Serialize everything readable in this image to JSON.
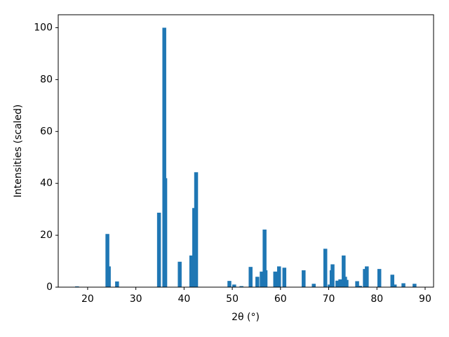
{
  "chart_data": {
    "type": "bar",
    "x_label": "2θ (°)",
    "y_label": "Intensities (scaled)",
    "x": [
      17.8,
      24.1,
      24.4,
      26.1,
      34.8,
      35.9,
      36.1,
      39.1,
      41.5,
      42.1,
      42.5,
      49.4,
      50.4,
      51.9,
      53.8,
      55.2,
      56.1,
      56.7,
      56.9,
      58.9,
      59.7,
      60.8,
      64.8,
      66.9,
      69.3,
      70.2,
      70.6,
      70.8,
      71.8,
      72.4,
      73.1,
      73.4,
      73.7,
      75.9,
      76.5,
      77.5,
      77.9,
      80.5,
      83.2,
      83.7,
      85.5,
      87.8
    ],
    "values": [
      0.3,
      20.5,
      8,
      2.2,
      28.7,
      100,
      42,
      9.8,
      12.2,
      30.5,
      44.3,
      2.4,
      1,
      0.4,
      7.8,
      4,
      6,
      22.2,
      6.5,
      6,
      8,
      7.5,
      6.5,
      1.3,
      14.8,
      1,
      6.5,
      8.8,
      2.5,
      3,
      12.2,
      4,
      2.8,
      2.3,
      0.5,
      7,
      8,
      7,
      4.8,
      1,
      1.5,
      1.3
    ],
    "color": "#1f77b4",
    "xlim": [
      13.9,
      91.75
    ],
    "ylim": [
      0,
      105
    ],
    "xticks": [
      20,
      30,
      40,
      50,
      60,
      70,
      80,
      90
    ],
    "yticks": [
      0,
      20,
      40,
      60,
      80,
      100
    ]
  }
}
